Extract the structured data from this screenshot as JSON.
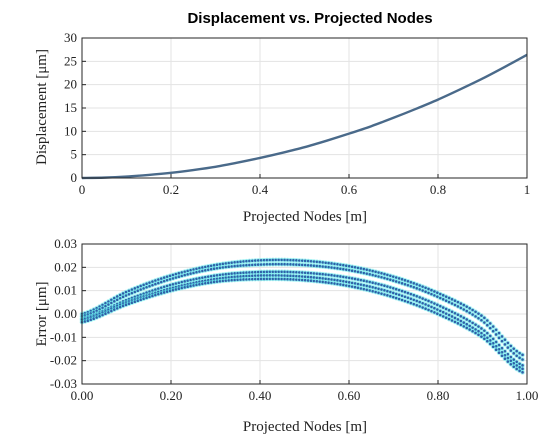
{
  "chart_data": [
    {
      "type": "line",
      "title": "Displacement vs. Projected Nodes",
      "xlabel": "Projected Nodes [m]",
      "ylabel": "Displacement [μm]",
      "xlim": [
        0,
        1
      ],
      "ylim": [
        0,
        30
      ],
      "x_ticks": [
        "0",
        "0.2",
        "0.4",
        "0.6",
        "0.8",
        "1"
      ],
      "y_ticks": [
        "0",
        "5",
        "10",
        "15",
        "20",
        "25",
        "30"
      ],
      "grid": true,
      "series": [
        {
          "color": "#4a6a8a",
          "x": [
            0,
            0.05,
            0.1,
            0.15,
            0.2,
            0.25,
            0.3,
            0.35,
            0.4,
            0.45,
            0.5,
            0.55,
            0.6,
            0.65,
            0.7,
            0.75,
            0.8,
            0.85,
            0.9,
            0.95,
            1.0
          ],
          "y": [
            0,
            0.08,
            0.3,
            0.65,
            1.1,
            1.7,
            2.4,
            3.3,
            4.3,
            5.4,
            6.6,
            8.0,
            9.5,
            11.1,
            12.9,
            14.8,
            16.8,
            19.0,
            21.3,
            23.8,
            26.4
          ]
        }
      ]
    },
    {
      "type": "scatter",
      "xlabel": "Projected Nodes [m]",
      "ylabel": "Error [μm]",
      "xlim": [
        0,
        1
      ],
      "ylim": [
        -0.03,
        0.03
      ],
      "x_ticks": [
        "0.00",
        "0.20",
        "0.40",
        "0.60",
        "0.80",
        "1.00"
      ],
      "y_ticks": [
        "-0.03",
        "-0.02",
        "-0.01",
        "0.00",
        "0.01",
        "0.02",
        "0.03"
      ],
      "grid": true,
      "x": [
        0.0,
        0.1,
        0.2,
        0.3,
        0.4,
        0.5,
        0.6,
        0.7,
        0.8,
        0.9,
        0.99
      ],
      "series": [
        {
          "color": "#2f5fa8",
          "y": [
            0.0,
            0.0095,
            0.0165,
            0.021,
            0.023,
            0.0228,
            0.0205,
            0.016,
            0.009,
            -0.001,
            -0.0175
          ]
        },
        {
          "color": "#2f5fa8",
          "y": [
            -0.001,
            0.008,
            0.015,
            0.0195,
            0.0212,
            0.021,
            0.0188,
            0.0143,
            0.0073,
            -0.003,
            -0.0195
          ]
        },
        {
          "color": "#2f5fa8",
          "y": [
            -0.002,
            0.006,
            0.0125,
            0.0165,
            0.018,
            0.0177,
            0.0155,
            0.011,
            0.0038,
            -0.0065,
            -0.022
          ]
        },
        {
          "color": "#2f5fa8",
          "y": [
            -0.0025,
            0.005,
            0.011,
            0.015,
            0.0165,
            0.016,
            0.0136,
            0.009,
            0.0018,
            -0.0085,
            -0.0235
          ]
        },
        {
          "color": "#2f5fa8",
          "y": [
            -0.0035,
            0.004,
            0.01,
            0.0138,
            0.015,
            0.0145,
            0.012,
            0.0072,
            0.0,
            -0.01,
            -0.025
          ]
        }
      ],
      "halo_color": "#5ee8ea"
    }
  ]
}
